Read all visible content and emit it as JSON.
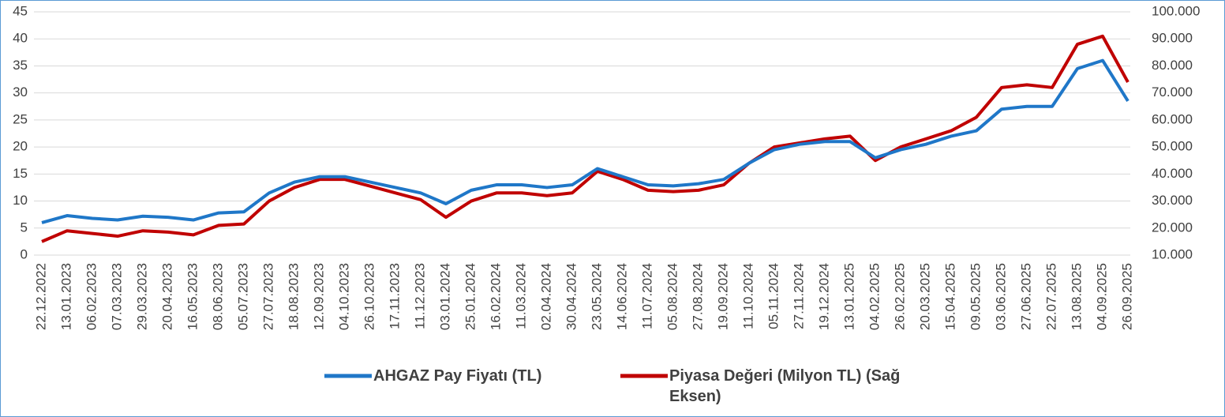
{
  "chart_data": {
    "type": "line",
    "categories": [
      "22.12.2022",
      "13.01.2023",
      "06.02.2023",
      "07.03.2023",
      "29.03.2023",
      "20.04.2023",
      "16.05.2023",
      "08.06.2023",
      "05.07.2023",
      "27.07.2023",
      "18.08.2023",
      "12.09.2023",
      "04.10.2023",
      "26.10.2023",
      "17.11.2023",
      "11.12.2023",
      "03.01.2024",
      "25.01.2024",
      "16.02.2024",
      "11.03.2024",
      "02.04.2024",
      "30.04.2024",
      "23.05.2024",
      "14.06.2024",
      "11.07.2024",
      "05.08.2024",
      "27.08.2024",
      "19.09.2024",
      "11.10.2024",
      "05.11.2024",
      "27.11.2024",
      "19.12.2024",
      "13.01.2025",
      "04.02.2025",
      "26.02.2025",
      "20.03.2025",
      "15.04.2025",
      "09.05.2025",
      "03.06.2025",
      "27.06.2025",
      "22.07.2025",
      "13.08.2025",
      "04.09.2025",
      "26.09.2025"
    ],
    "series": [
      {
        "name": "AHGAZ Pay Fiyatı (TL)",
        "color": "#1f77c8",
        "axis": "y",
        "values": [
          6,
          7.3,
          6.8,
          6.5,
          7.2,
          7.0,
          6.5,
          7.8,
          8.0,
          11.5,
          13.5,
          14.5,
          14.5,
          13.5,
          12.5,
          11.5,
          9.5,
          12.0,
          13.0,
          13.0,
          12.5,
          13.0,
          16.0,
          14.5,
          13.0,
          12.8,
          13.2,
          14.0,
          17.0,
          19.5,
          20.5,
          21.0,
          21.0,
          18.0,
          19.5,
          20.5,
          22.0,
          23.0,
          27.0,
          27.5,
          27.5,
          34.5,
          36.0,
          28.5
        ]
      },
      {
        "name": "Piyasa Değeri (Milyon TL) (Sağ Eksen)",
        "color": "#c00000",
        "axis": "y2",
        "values": [
          15000,
          19000,
          18000,
          17000,
          19000,
          18500,
          17500,
          21000,
          21500,
          30000,
          35000,
          38000,
          38000,
          35500,
          33000,
          30500,
          24000,
          30000,
          33000,
          33000,
          32000,
          33000,
          41000,
          38000,
          34000,
          33500,
          34000,
          36000,
          44000,
          50000,
          51500,
          53000,
          54000,
          45000,
          50000,
          53000,
          56000,
          61000,
          72000,
          73000,
          72000,
          88000,
          91000,
          74000
        ]
      }
    ],
    "ylim": [
      0,
      45
    ],
    "yticks": [
      0,
      5,
      10,
      15,
      20,
      25,
      30,
      35,
      40,
      45
    ],
    "y2lim": [
      10000,
      100000
    ],
    "y2ticks": [
      {
        "value": 10000,
        "label": "10.000"
      },
      {
        "value": 20000,
        "label": "20.000"
      },
      {
        "value": 30000,
        "label": "30.000"
      },
      {
        "value": 40000,
        "label": "40.000"
      },
      {
        "value": 50000,
        "label": "50.000"
      },
      {
        "value": 60000,
        "label": "60.000"
      },
      {
        "value": 70000,
        "label": "70.000"
      },
      {
        "value": 80000,
        "label": "80.000"
      },
      {
        "value": 90000,
        "label": "90.000"
      },
      {
        "value": 100000,
        "label": "100.000"
      }
    ],
    "grid": true
  }
}
